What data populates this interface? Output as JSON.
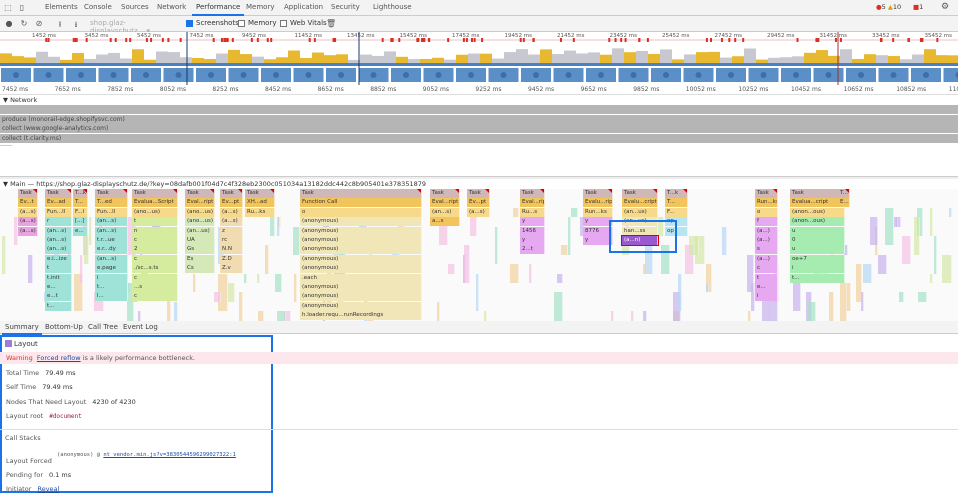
{
  "tabs": [
    "Elements",
    "Console",
    "Sources",
    "Network",
    "Performance",
    "Memory",
    "Application",
    "Security",
    "Lighthouse"
  ],
  "active_tab": "Performance",
  "badges": {
    "errors": "5",
    "warnings": "10",
    "issues": "1"
  },
  "toolbar": {
    "profile_select": "shop.glaz-displayschutz...",
    "screenshots_label": "Screenshots",
    "screenshots_checked": true,
    "memory_label": "Memory",
    "memory_checked": false,
    "webvitals_label": "Web Vitals",
    "webvitals_checked": false
  },
  "overview_ticks": [
    "1452 ms",
    "3452 ms",
    "5452 ms",
    "7452 ms",
    "9452 ms",
    "11452 ms",
    "13452 ms",
    "15452 ms",
    "17452 ms",
    "19452 ms",
    "21452 ms",
    "23452 ms",
    "25452 ms",
    "27452 ms",
    "29452 ms",
    "31452 ms",
    "33452 ms",
    "35452 ms"
  ],
  "ruler_ticks": [
    "7452 ms",
    "7652 ms",
    "7852 ms",
    "8052 ms",
    "8252 ms",
    "8452 ms",
    "8652 ms",
    "8852 ms",
    "9052 ms",
    "9252 ms",
    "9452 ms",
    "9652 ms",
    "9852 ms",
    "10052 ms",
    "10252 ms",
    "10452 ms",
    "10652 ms",
    "10852 ms",
    "1105"
  ],
  "network": {
    "title": "▼ Network",
    "requests": [
      "",
      "produce (monorail-edge.shopifysvc.com)",
      "collect (www.google-analytics.com)",
      "collect (t.clarity.ms)"
    ]
  },
  "main": {
    "title": "▼ Main — https://shop.glaz-displayschutz.de/?key=08dafb001f04d7c4f328eb2300c051034a13182ddc442c8b905401e378351879",
    "columns": [
      [
        "Task",
        "Ev...t",
        "(a...s)",
        "(a...s)",
        "(a...s)"
      ],
      [
        "Task",
        "Ev...ad",
        "Fun...ll",
        "r",
        "(an...s)",
        "(an...s)",
        "(an...s)",
        "e.i...ize",
        "t",
        "t.init",
        "e...",
        "e...t",
        "t..."
      ],
      [
        "T...k",
        "T...",
        "F...l",
        "[...]",
        "e..."
      ],
      [
        "Task",
        "T...ed",
        "Fun...ll",
        "(an...s)",
        "(an...s)",
        "t.r...ue",
        "e.r...dy",
        "(an...s)",
        "e.page",
        "i",
        "t...",
        "l..."
      ],
      [
        "Task",
        "Evalua...Script",
        "(ano...us)",
        "t",
        "n",
        "c",
        "2",
        "c",
        "./sc...s.ts",
        "c",
        "...s",
        "c"
      ],
      [
        "Task",
        "Eval...ript",
        "(ano...us)",
        "(ano...us)",
        "(an...us)",
        "UA",
        "Gs",
        "Es",
        "Cs"
      ],
      [
        "Task",
        "Ev...pt",
        "(a...s)",
        "(a...s)",
        "z",
        "rc",
        "N.N",
        "Z.D",
        "Z.v"
      ],
      [
        "Task",
        "XH...ad",
        "Ru...ks"
      ],
      [
        "Task",
        "Function Call",
        "o",
        "(anonymous)",
        "(anonymous)",
        "(anonymous)",
        "(anonymous)",
        "(anonymous)",
        "(anonymous)",
        ".each",
        "(anonymous)",
        "(anonymous)",
        "(anonymous)",
        "h.loader.requ...runRecordings"
      ],
      [
        "Task",
        "Eval...ript",
        "(an...s)",
        "a...s"
      ],
      [
        "Task",
        "Ev...pt",
        "(a...s)"
      ],
      [
        "Task",
        "Eval...ript",
        "Ru...s",
        "y",
        "1456",
        "y",
        "2...t"
      ],
      [
        "Task",
        "Evalu...ript",
        "Run...ks",
        "y",
        "8776",
        "y"
      ],
      [
        "Task",
        "Evalu...cript",
        "(an...us)",
        "(an...us)",
        "han...ss",
        "(a...n)"
      ],
      [
        "T...k",
        "T...",
        "F...",
        "op",
        "op"
      ],
      [
        "Task",
        "Run...ks",
        "o",
        "f",
        "(a...)",
        "(a...)",
        "s",
        "(a...)",
        "c",
        "t",
        "e...",
        "i"
      ],
      [
        "Task",
        "Evalua...cript",
        "(anon...ous)",
        "(anon...ous)",
        "u",
        "0",
        "u",
        "oe+7",
        "i",
        "t..."
      ],
      [
        "T...",
        "E..."
      ]
    ]
  },
  "bottom_tabs": [
    "Summary",
    "Bottom-Up",
    "Call Tree",
    "Event Log"
  ],
  "summary": {
    "event": "Layout",
    "event_color": "#9b7fd4",
    "warning_label": "Warning",
    "warning_link": "Forced reflow",
    "warning_text": "is a likely performance bottleneck.",
    "rows": [
      {
        "label": "Total Time",
        "value": "79.49 ms"
      },
      {
        "label": "Self Time",
        "value": "79.49 ms"
      },
      {
        "label": "Nodes That Need Layout",
        "value": "4230 of 4230"
      },
      {
        "label": "Layout root",
        "value": "#document"
      }
    ],
    "call_stacks_title": "Call Stacks",
    "stack_fn": "(anonymous) @",
    "stack_link": "nt_vendor.min.js?v=3830544596299027322:1",
    "layout_forced_label": "Layout Forced",
    "pending_label": "Pending for",
    "pending_value": "0.1 ms",
    "initiator_label": "Initiator",
    "initiator_link": "Reveal"
  },
  "colors": {
    "accent": "#1a73e8",
    "task": "#d0b8b8",
    "script": "#f2c45c",
    "layout": "#9b7fd4",
    "warning_bg": "#fce8ec"
  }
}
